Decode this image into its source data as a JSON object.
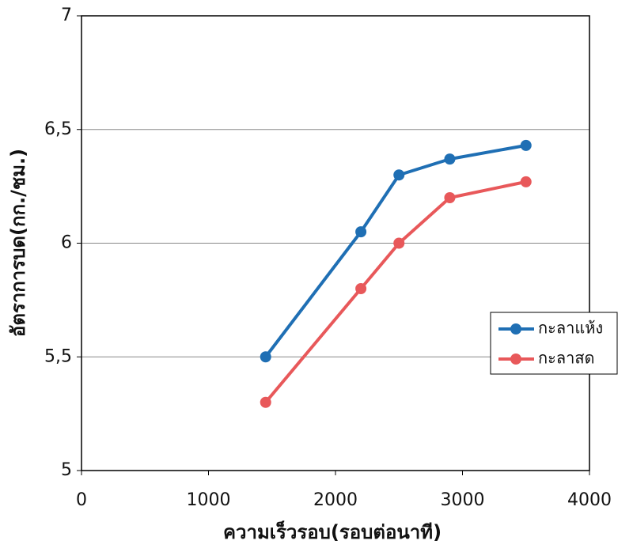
{
  "chart_data": {
    "type": "line",
    "x_label": "ความเร็วรอบ(รอบต่อนาที)",
    "y_label": "อัตราการบด(กก./ชม.)",
    "x": [
      1450,
      2200,
      2500,
      2900,
      3500
    ],
    "series": [
      {
        "name": "กะลาแห้ง",
        "color": "#1f6fb4",
        "values": [
          5.5,
          6.05,
          6.3,
          6.37,
          6.43
        ]
      },
      {
        "name": "กะลาสด",
        "color": "#e8585a",
        "values": [
          5.3,
          5.8,
          6.0,
          6.2,
          6.27
        ]
      }
    ],
    "xlim": [
      0,
      4000
    ],
    "xticks": [
      0,
      1000,
      2000,
      3000,
      4000
    ],
    "ylim": [
      5,
      7
    ],
    "yticks": [
      5,
      {
        "value": 5.5,
        "label": "5,5"
      },
      6,
      {
        "value": 6.5,
        "label": "6,5"
      },
      7
    ],
    "grid": true,
    "legend": "right"
  }
}
